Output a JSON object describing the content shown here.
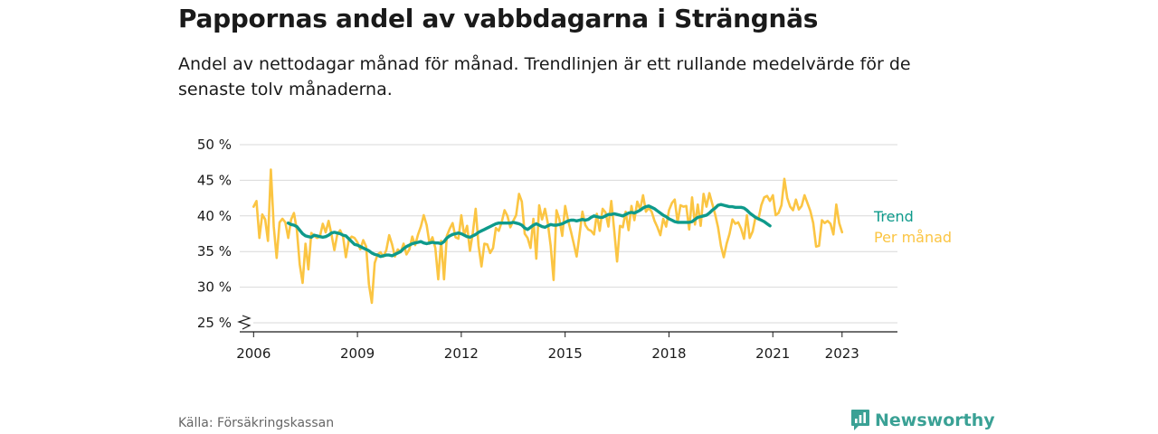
{
  "title": "Pappornas andel av vabbdagarna i Strängnäs",
  "subtitle": "Andel av nettodagar månad för månad. Trendlinjen är ett rullande medelvärde för de senaste tolv månaderna.",
  "source": "Källa: Försäkringskassan",
  "brand": {
    "name": "Newsworthy",
    "icon": "newsworthy-logo-icon",
    "color": "#3aa195"
  },
  "colors": {
    "monthly": "#fbc543",
    "trend": "#0e9a8b",
    "grid": "#d9d9d9",
    "axis": "#1a1a1a"
  },
  "chart_data": {
    "type": "line",
    "x_axis": {
      "ticks": [
        2006,
        2009,
        2012,
        2015,
        2018,
        2021,
        2023
      ],
      "range": [
        2005.6,
        2024.6
      ]
    },
    "y_axis": {
      "ticks": [
        25,
        30,
        35,
        40,
        45,
        50
      ],
      "tick_labels": [
        "25 %",
        "30 %",
        "35 %",
        "40 %",
        "45 %",
        "50 %"
      ],
      "range": [
        25,
        50
      ],
      "unit": "%",
      "axis_break": true
    },
    "grid": true,
    "legend_placement": "end-of-lines",
    "series": [
      {
        "name": "Per månad",
        "start": 2006.0,
        "step_months": 1,
        "values": [
          41.3,
          42.1,
          36.9,
          40.2,
          39.5,
          36.5,
          46.5,
          38.5,
          34.1,
          39.1,
          39.6,
          39.1,
          36.9,
          39.5,
          40.4,
          38.1,
          33.2,
          30.6,
          36.1,
          32.5,
          37.6,
          37.2,
          36.9,
          37.1,
          38.9,
          37.7,
          39.3,
          37.4,
          35.2,
          37.4,
          38.0,
          37.1,
          34.2,
          36.6,
          37.1,
          36.9,
          36.3,
          35.3,
          36.6,
          35.7,
          30.4,
          27.8,
          33.4,
          34.6,
          34.9,
          34.3,
          35.2,
          37.3,
          36.0,
          34.3,
          35.3,
          34.9,
          36.1,
          34.6,
          35.3,
          37.1,
          35.9,
          37.4,
          38.5,
          40.1,
          38.7,
          36.1,
          37.0,
          35.5,
          31.1,
          36.5,
          31.1,
          37.2,
          38.2,
          39.0,
          37.0,
          36.8,
          40.1,
          37.3,
          38.6,
          35.1,
          37.6,
          41.0,
          35.8,
          32.9,
          36.1,
          36.0,
          34.8,
          35.5,
          38.3,
          37.9,
          39.1,
          40.8,
          40.0,
          38.4,
          39.3,
          40.1,
          43.1,
          42.0,
          37.5,
          36.9,
          35.5,
          39.6,
          34.0,
          41.5,
          39.5,
          41.0,
          39.0,
          35.8,
          31.0,
          40.8,
          39.5,
          37.2,
          41.4,
          39.4,
          37.8,
          36.1,
          34.3,
          37.4,
          40.6,
          38.7,
          38.1,
          37.9,
          37.4,
          40.3,
          37.9,
          41.0,
          40.5,
          38.5,
          42.1,
          38.0,
          33.6,
          38.6,
          38.4,
          40.6,
          38.0,
          41.4,
          39.4,
          42.0,
          40.9,
          42.9,
          40.6,
          41.1,
          40.6,
          39.3,
          38.4,
          37.3,
          39.6,
          38.5,
          40.8,
          41.8,
          42.3,
          39.1,
          41.5,
          41.3,
          41.4,
          38.1,
          42.6,
          38.8,
          41.6,
          38.6,
          43.1,
          41.3,
          43.2,
          41.7,
          40.2,
          38.4,
          35.8,
          34.2,
          36.1,
          37.5,
          39.5,
          38.9,
          39.1,
          38.2,
          36.8,
          40.1,
          36.9,
          37.8,
          39.8,
          39.5,
          41.5,
          42.6,
          42.8,
          42.1,
          42.9,
          40.1,
          40.4,
          41.5,
          45.2,
          42.5,
          41.3,
          40.8,
          42.3,
          40.9,
          41.4,
          42.9,
          41.8,
          40.7,
          39.0,
          35.7,
          35.8,
          39.4,
          39.0,
          39.3,
          38.9,
          37.4,
          41.6,
          39.0,
          37.7
        ]
      },
      {
        "name": "Trend",
        "start": 2007.0,
        "step_months": 1,
        "values": [
          39.0,
          38.8,
          38.7,
          38.5,
          38.0,
          37.5,
          37.2,
          37.1,
          37.0,
          37.3,
          37.2,
          37.1,
          37.0,
          37.1,
          37.3,
          37.6,
          37.7,
          37.6,
          37.5,
          37.3,
          37.2,
          36.8,
          36.4,
          36.0,
          35.9,
          35.7,
          35.5,
          35.3,
          35.1,
          34.8,
          34.6,
          34.5,
          34.3,
          34.4,
          34.5,
          34.5,
          34.4,
          34.6,
          34.8,
          35.0,
          35.4,
          35.7,
          35.9,
          36.1,
          36.2,
          36.3,
          36.4,
          36.2,
          36.1,
          36.2,
          36.3,
          36.2,
          36.2,
          36.1,
          36.4,
          36.9,
          37.2,
          37.4,
          37.5,
          37.6,
          37.5,
          37.3,
          37.1,
          37.0,
          37.2,
          37.4,
          37.7,
          37.9,
          38.1,
          38.3,
          38.5,
          38.7,
          38.9,
          39.0,
          39.0,
          39.0,
          39.0,
          39.0,
          39.1,
          39.0,
          38.9,
          38.7,
          38.3,
          38.1,
          38.4,
          38.7,
          38.9,
          38.7,
          38.5,
          38.4,
          38.6,
          38.8,
          38.7,
          38.7,
          38.8,
          38.9,
          39.1,
          39.3,
          39.4,
          39.4,
          39.3,
          39.4,
          39.5,
          39.4,
          39.5,
          39.8,
          40.0,
          39.9,
          39.8,
          39.8,
          40.0,
          40.2,
          40.2,
          40.3,
          40.2,
          40.1,
          40.0,
          40.2,
          40.4,
          40.5,
          40.4,
          40.6,
          40.8,
          41.1,
          41.3,
          41.4,
          41.2,
          41.0,
          40.7,
          40.4,
          40.1,
          39.9,
          39.6,
          39.4,
          39.2,
          39.1,
          39.1,
          39.1,
          39.1,
          39.1,
          39.2,
          39.5,
          39.8,
          39.9,
          40.0,
          40.1,
          40.4,
          40.8,
          41.1,
          41.5,
          41.6,
          41.5,
          41.4,
          41.3,
          41.3,
          41.2,
          41.2,
          41.2,
          41.1,
          40.8,
          40.4,
          40.1,
          39.8,
          39.6,
          39.4,
          39.2,
          38.9,
          38.6
        ]
      }
    ]
  }
}
